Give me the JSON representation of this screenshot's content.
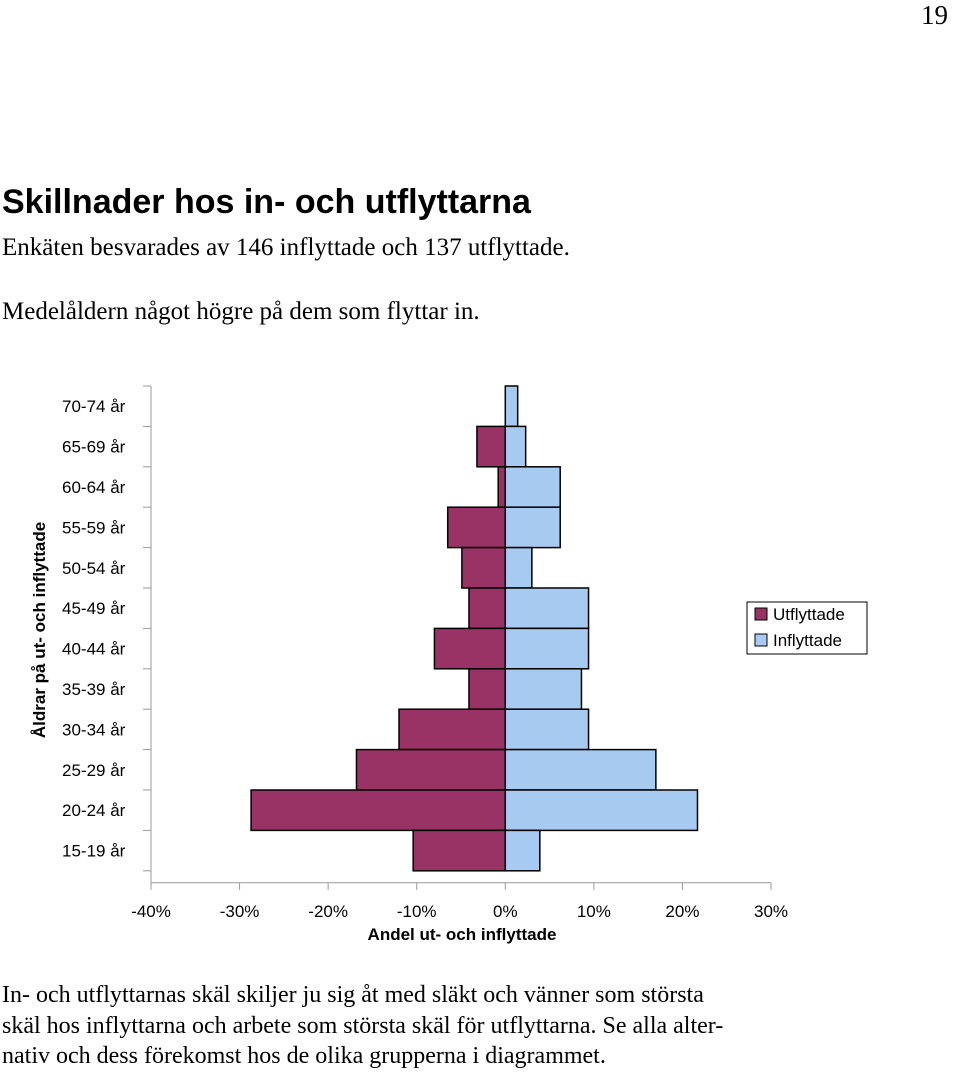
{
  "page": {
    "number": "19",
    "heading": "Skillnader hos in- och utflyttarna",
    "line1": "Enkäten besvarades av 146 inflyttade och 137 utflyttade.",
    "line2": "Medelåldern något högre på dem som flyttar in.",
    "footer_lines": [
      "In- och utflyttarnas skäl skiljer ju sig åt med släkt och vänner som största",
      "skäl hos inflyttarna och arbete som största skäl för utflyttarna. Se alla alter-",
      "nativ och dess förekomst hos de olika grupperna i diagrammet."
    ]
  },
  "chart_data": {
    "type": "bar",
    "orientation": "horizontal",
    "layout": "population-pyramid",
    "categories": [
      "70-74 år",
      "65-69 år",
      "60-64 år",
      "55-59 år",
      "50-54 år",
      "45-49 år",
      "40-44 år",
      "35-39 år",
      "30-34 år",
      "25-29 år",
      "20-24 år",
      "15-19 år"
    ],
    "series": [
      {
        "name": "Utflyttade",
        "color": "#993366",
        "values": [
          0,
          -3.2,
          -0.8,
          -6.5,
          -4.9,
          -4.1,
          -8.0,
          -4.1,
          -12.0,
          -16.8,
          -28.7,
          -10.4
        ]
      },
      {
        "name": "Inflyttade",
        "color": "#a6caf0",
        "values": [
          1.4,
          2.3,
          6.2,
          6.2,
          3.0,
          9.4,
          9.4,
          8.6,
          9.4,
          17.0,
          21.7,
          3.9
        ]
      }
    ],
    "xlim": [
      -40,
      30
    ],
    "xticks": [
      -40,
      -30,
      -20,
      -10,
      0,
      10,
      20,
      30
    ],
    "xtick_labels": [
      "-40%",
      "-30%",
      "-20%",
      "-10%",
      "0%",
      "10%",
      "20%",
      "30%"
    ],
    "xlabel": "Andel ut- och inflyttade",
    "ylabel": "Åldrar på ut- och inflyttade",
    "legend": {
      "position": "right",
      "entries": [
        "Utflyttade",
        "Inflyttade"
      ]
    },
    "grid": false
  }
}
